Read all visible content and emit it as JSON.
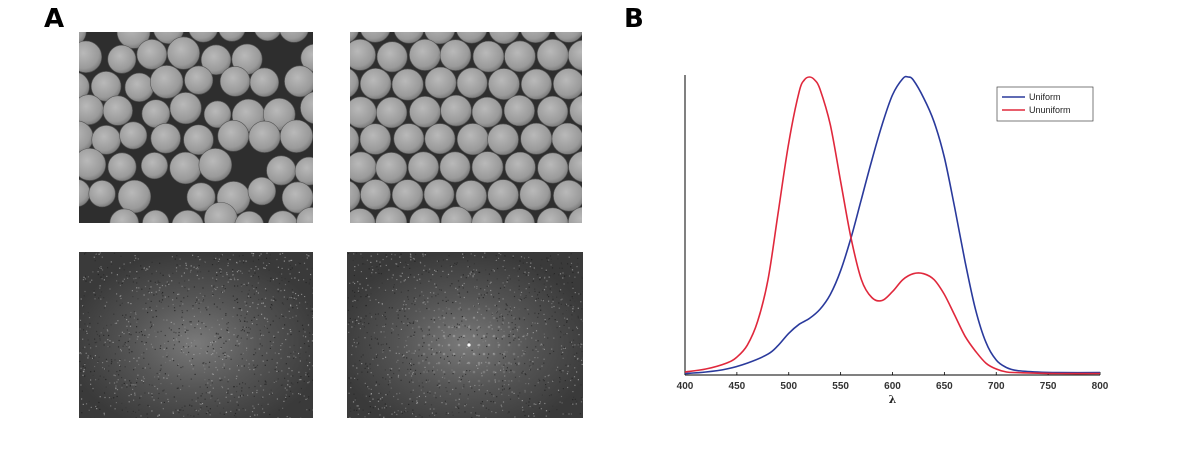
{
  "panels": {
    "a_label": "A",
    "b_label": "B"
  },
  "chart_data": {
    "type": "line",
    "title": "",
    "xlabel": "λ",
    "ylabel": "",
    "xlim": [
      400,
      800
    ],
    "ylim": [
      0,
      1
    ],
    "xticks": [
      400,
      450,
      500,
      550,
      600,
      650,
      700,
      750,
      800
    ],
    "grid": false,
    "legend_position": "top-right",
    "series": [
      {
        "name": "Uniform",
        "color": "#2a3a9c",
        "x": [
          400,
          420,
          440,
          460,
          480,
          490,
          500,
          510,
          520,
          530,
          540,
          550,
          560,
          570,
          580,
          590,
          600,
          610,
          615,
          620,
          630,
          640,
          650,
          660,
          670,
          680,
          690,
          700,
          710,
          720,
          740,
          760,
          800
        ],
        "y": [
          0.005,
          0.01,
          0.02,
          0.04,
          0.07,
          0.1,
          0.14,
          0.17,
          0.19,
          0.22,
          0.27,
          0.35,
          0.46,
          0.59,
          0.72,
          0.84,
          0.94,
          0.995,
          1.0,
          0.99,
          0.93,
          0.85,
          0.73,
          0.56,
          0.38,
          0.22,
          0.11,
          0.05,
          0.025,
          0.015,
          0.01,
          0.008,
          0.008
        ]
      },
      {
        "name": "Ununiform",
        "color": "#e0283c",
        "x": [
          400,
          420,
          440,
          450,
          460,
          470,
          480,
          490,
          500,
          510,
          515,
          520,
          525,
          530,
          540,
          550,
          560,
          570,
          580,
          590,
          600,
          610,
          620,
          630,
          640,
          650,
          660,
          670,
          680,
          690,
          700,
          710,
          720,
          740,
          760,
          800
        ],
        "y": [
          0.01,
          0.02,
          0.04,
          0.06,
          0.1,
          0.18,
          0.32,
          0.55,
          0.78,
          0.95,
          0.99,
          1.0,
          0.99,
          0.96,
          0.84,
          0.65,
          0.46,
          0.32,
          0.26,
          0.25,
          0.28,
          0.32,
          0.34,
          0.34,
          0.32,
          0.27,
          0.2,
          0.13,
          0.08,
          0.04,
          0.02,
          0.01,
          0.008,
          0.006,
          0.005,
          0.005
        ]
      }
    ]
  }
}
